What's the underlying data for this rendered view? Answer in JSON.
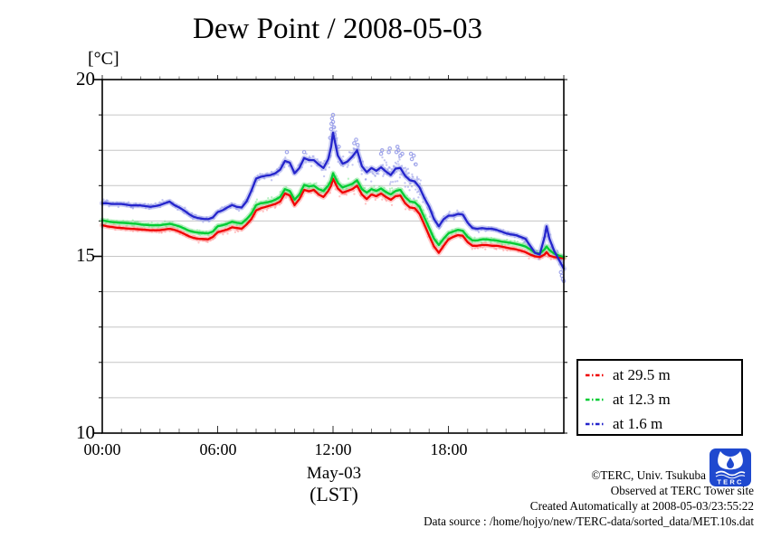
{
  "title": "Dew Point / 2008-05-03",
  "y_unit_label": "[°C]",
  "x_axis": {
    "ticks": [
      {
        "value": 0,
        "label": "00:00"
      },
      {
        "value": 6,
        "label": "06:00"
      },
      {
        "value": 12,
        "label": "12:00"
      },
      {
        "value": 18,
        "label": "18:00"
      }
    ],
    "sub_label": "May-03",
    "sub_label2": "(LST)"
  },
  "y_axis": {
    "ticks": [
      {
        "value": 20,
        "label": "20"
      },
      {
        "value": 15,
        "label": "15"
      },
      {
        "value": 10,
        "label": "10"
      }
    ]
  },
  "legend": {
    "entries": [
      {
        "label": "at 29.5 m"
      },
      {
        "label": "at 12.3 m"
      },
      {
        "label": "at 1.6 m"
      }
    ]
  },
  "footer": {
    "lines": [
      "©TERC, Univ. Tsukuba",
      "Observed at TERC Tower site",
      "Created Automatically at 2008-05-03/23:55:22",
      "Data source : /home/hojyo/new/TERC-data/sorted_data/MET.10s.dat"
    ],
    "logo_text": "TERC"
  },
  "chart_data": {
    "type": "line",
    "title": "Dew Point / 2008-05-03",
    "xlabel": "May-03 (LST)",
    "ylabel": "[°C]",
    "xlim": [
      0,
      24
    ],
    "ylim": [
      10,
      20
    ],
    "grid": "horizontal",
    "legend_position": "right-bottom-outside",
    "x_hours": [
      0,
      0.25,
      0.5,
      0.75,
      1,
      1.25,
      1.5,
      1.75,
      2,
      2.25,
      2.5,
      2.75,
      3,
      3.25,
      3.5,
      3.75,
      4,
      4.25,
      4.5,
      4.75,
      5,
      5.25,
      5.5,
      5.75,
      6,
      6.25,
      6.5,
      6.75,
      7,
      7.25,
      7.5,
      7.75,
      8,
      8.25,
      8.5,
      8.75,
      9,
      9.25,
      9.5,
      9.75,
      10,
      10.25,
      10.5,
      10.75,
      11,
      11.25,
      11.5,
      11.75,
      11.9,
      12,
      12.25,
      12.5,
      12.75,
      13,
      13.25,
      13.5,
      13.75,
      14,
      14.25,
      14.5,
      14.75,
      15,
      15.25,
      15.5,
      15.75,
      16,
      16.25,
      16.5,
      16.75,
      17,
      17.25,
      17.5,
      17.75,
      18,
      18.25,
      18.5,
      18.75,
      19,
      19.25,
      19.5,
      19.75,
      20,
      20.25,
      20.5,
      20.75,
      21,
      21.25,
      21.5,
      21.75,
      22,
      22.25,
      22.5,
      22.75,
      23,
      23.1,
      23.25,
      23.5,
      23.75,
      24
    ],
    "series": [
      {
        "name": "at 29.5 m",
        "height_m": 29.5,
        "color": "#f00000",
        "halo": "#ff9494",
        "values": [
          15.88,
          15.85,
          15.83,
          15.81,
          15.8,
          15.79,
          15.78,
          15.77,
          15.76,
          15.75,
          15.74,
          15.74,
          15.74,
          15.76,
          15.78,
          15.75,
          15.7,
          15.64,
          15.57,
          15.52,
          15.5,
          15.49,
          15.48,
          15.55,
          15.68,
          15.72,
          15.76,
          15.82,
          15.8,
          15.78,
          15.9,
          16.05,
          16.3,
          16.36,
          16.4,
          16.44,
          16.48,
          16.55,
          16.78,
          16.72,
          16.45,
          16.62,
          16.88,
          16.84,
          16.88,
          16.75,
          16.68,
          16.85,
          17.0,
          17.2,
          16.92,
          16.8,
          16.85,
          16.9,
          17.0,
          16.75,
          16.62,
          16.75,
          16.7,
          16.78,
          16.68,
          16.6,
          16.7,
          16.72,
          16.5,
          16.38,
          16.36,
          16.2,
          15.9,
          15.58,
          15.28,
          15.1,
          15.3,
          15.48,
          15.55,
          15.6,
          15.58,
          15.4,
          15.3,
          15.3,
          15.32,
          15.32,
          15.3,
          15.3,
          15.28,
          15.25,
          15.22,
          15.2,
          15.16,
          15.12,
          15.05,
          15.0,
          14.98,
          15.05,
          15.12,
          15.02,
          14.98,
          14.96,
          14.95
        ],
        "spread_segments": [
          [
            0,
            7,
            0.09
          ],
          [
            7,
            11,
            0.12
          ],
          [
            11,
            13,
            0.17
          ],
          [
            13,
            17,
            0.15
          ],
          [
            17,
            24,
            0.1
          ]
        ]
      },
      {
        "name": "at 12.3 m",
        "height_m": 12.3,
        "color": "#00cc33",
        "halo": "#80e592",
        "values": [
          16.02,
          15.99,
          15.97,
          15.96,
          15.95,
          15.94,
          15.93,
          15.92,
          15.9,
          15.89,
          15.88,
          15.88,
          15.88,
          15.9,
          15.92,
          15.89,
          15.85,
          15.79,
          15.73,
          15.69,
          15.67,
          15.66,
          15.65,
          15.7,
          15.85,
          15.88,
          15.92,
          15.98,
          15.95,
          15.93,
          16.05,
          16.2,
          16.45,
          16.5,
          16.52,
          16.55,
          16.6,
          16.68,
          16.9,
          16.85,
          16.6,
          16.75,
          17.02,
          16.98,
          17.0,
          16.9,
          16.85,
          17.0,
          17.15,
          17.35,
          17.08,
          16.95,
          17.0,
          17.05,
          17.15,
          16.9,
          16.8,
          16.9,
          16.85,
          16.92,
          16.82,
          16.75,
          16.85,
          16.88,
          16.68,
          16.55,
          16.53,
          16.4,
          16.1,
          15.8,
          15.5,
          15.32,
          15.5,
          15.65,
          15.7,
          15.75,
          15.72,
          15.55,
          15.45,
          15.45,
          15.48,
          15.48,
          15.46,
          15.45,
          15.42,
          15.4,
          15.38,
          15.35,
          15.32,
          15.28,
          15.2,
          15.1,
          15.08,
          15.2,
          15.28,
          15.18,
          15.08,
          15.02,
          14.98
        ],
        "spread_segments": [
          [
            0,
            7,
            0.07
          ],
          [
            7,
            11,
            0.1
          ],
          [
            11,
            13,
            0.15
          ],
          [
            13,
            17,
            0.13
          ],
          [
            17,
            24,
            0.08
          ]
        ]
      },
      {
        "name": "at 1.6 m",
        "height_m": 1.6,
        "color": "#2525cc",
        "halo": "#9399e8",
        "values": [
          16.5,
          16.5,
          16.48,
          16.48,
          16.48,
          16.46,
          16.44,
          16.44,
          16.44,
          16.42,
          16.4,
          16.42,
          16.45,
          16.5,
          16.55,
          16.45,
          16.38,
          16.3,
          16.2,
          16.12,
          16.08,
          16.06,
          16.05,
          16.1,
          16.25,
          16.3,
          16.38,
          16.45,
          16.4,
          16.38,
          16.55,
          16.85,
          17.2,
          17.25,
          17.28,
          17.3,
          17.35,
          17.45,
          17.7,
          17.65,
          17.35,
          17.5,
          17.78,
          17.72,
          17.72,
          17.6,
          17.5,
          17.75,
          18.1,
          18.5,
          17.85,
          17.62,
          17.68,
          17.82,
          18.0,
          17.55,
          17.38,
          17.5,
          17.42,
          17.52,
          17.4,
          17.3,
          17.48,
          17.5,
          17.28,
          17.15,
          17.12,
          16.95,
          16.65,
          16.4,
          16.05,
          15.85,
          16.05,
          16.15,
          16.15,
          16.2,
          16.18,
          15.95,
          15.8,
          15.78,
          15.8,
          15.78,
          15.78,
          15.75,
          15.7,
          15.65,
          15.62,
          15.6,
          15.55,
          15.5,
          15.3,
          15.1,
          15.05,
          15.55,
          15.85,
          15.5,
          15.15,
          14.9,
          14.65
        ],
        "spread_segments": [
          [
            0,
            7,
            0.08
          ],
          [
            7,
            9,
            0.12
          ],
          [
            9,
            11,
            0.15
          ],
          [
            11,
            11.8,
            0.2
          ],
          [
            11.8,
            12.3,
            0.45
          ],
          [
            12.3,
            13,
            0.2
          ],
          [
            13,
            13.4,
            0.3
          ],
          [
            13.4,
            14.6,
            0.25
          ],
          [
            14.6,
            16.5,
            0.38
          ],
          [
            16.5,
            17.5,
            0.2
          ],
          [
            17.5,
            19,
            0.12
          ],
          [
            19,
            22,
            0.08
          ],
          [
            22,
            23,
            0.1
          ],
          [
            23,
            24,
            0.25
          ]
        ],
        "outliers": [
          [
            9.6,
            17.95
          ],
          [
            10.5,
            17.95
          ],
          [
            11.85,
            18.35
          ],
          [
            11.9,
            18.6
          ],
          [
            11.92,
            18.75
          ],
          [
            11.95,
            18.9
          ],
          [
            12.0,
            19.0
          ],
          [
            12.0,
            18.8
          ],
          [
            12.05,
            18.65
          ],
          [
            12.08,
            18.45
          ],
          [
            12.12,
            18.3
          ],
          [
            12.3,
            18.1
          ],
          [
            13.1,
            18.2
          ],
          [
            13.2,
            18.3
          ],
          [
            13.28,
            18.15
          ],
          [
            14.5,
            17.9
          ],
          [
            14.55,
            18.0
          ],
          [
            14.9,
            17.95
          ],
          [
            14.95,
            18.05
          ],
          [
            15.3,
            17.95
          ],
          [
            15.35,
            18.1
          ],
          [
            15.4,
            18.0
          ],
          [
            15.5,
            17.85
          ],
          [
            15.6,
            17.9
          ],
          [
            16.05,
            17.9
          ],
          [
            16.1,
            17.75
          ],
          [
            16.2,
            17.85
          ],
          [
            16.3,
            17.6
          ],
          [
            23.85,
            14.55
          ],
          [
            23.9,
            14.45
          ],
          [
            23.95,
            14.35
          ],
          [
            24,
            14.3
          ]
        ]
      }
    ]
  }
}
